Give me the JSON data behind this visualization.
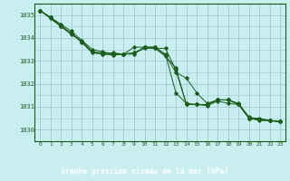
{
  "title": "Graphe pression niveau de la mer (hPa)",
  "bg_color": "#c8eef0",
  "grid_color": "#a0c8d0",
  "line_color": "#1a5c1a",
  "label_bg": "#2d6e2d",
  "xlim": [
    -0.5,
    23.5
  ],
  "ylim": [
    1029.5,
    1035.5
  ],
  "yticks": [
    1030,
    1031,
    1032,
    1033,
    1034,
    1035
  ],
  "xticks": [
    0,
    1,
    2,
    3,
    4,
    5,
    6,
    7,
    8,
    9,
    10,
    11,
    12,
    13,
    14,
    15,
    16,
    17,
    18,
    19,
    20,
    21,
    22,
    23
  ],
  "series": [
    [
      1035.2,
      1034.9,
      1034.6,
      1034.3,
      1033.9,
      1033.5,
      1033.4,
      1033.3,
      1033.3,
      1033.6,
      1033.6,
      1033.6,
      1033.3,
      1031.6,
      1031.15,
      1031.1,
      1031.1,
      1031.3,
      1031.3,
      1031.1,
      1030.5,
      1030.4,
      1030.4,
      1030.35
    ],
    [
      1035.2,
      1034.9,
      1034.55,
      1034.2,
      1033.85,
      1033.4,
      1033.3,
      1033.3,
      1033.3,
      1033.3,
      1033.6,
      1033.6,
      1033.25,
      1032.5,
      1032.25,
      1031.6,
      1031.15,
      1031.3,
      1031.3,
      1031.15,
      1030.55,
      1030.45,
      1030.4,
      1030.35
    ],
    [
      1035.2,
      1034.85,
      1034.5,
      1034.2,
      1033.8,
      1033.35,
      1033.3,
      1033.25,
      1033.3,
      1033.35,
      1033.55,
      1033.55,
      1033.2,
      1032.7,
      1031.1,
      1031.1,
      1031.05,
      1031.25,
      1031.15,
      1031.1,
      1030.5,
      1030.45,
      1030.4,
      1030.35
    ],
    [
      1035.2,
      1034.9,
      1034.5,
      1034.15,
      1033.85,
      1033.4,
      1033.35,
      1033.35,
      1033.3,
      1033.35,
      1033.6,
      1033.55,
      1033.55,
      1032.6,
      1031.1,
      1031.1,
      1031.1,
      1031.3,
      1031.3,
      1031.1,
      1030.5,
      1030.5,
      1030.4,
      1030.35
    ]
  ]
}
